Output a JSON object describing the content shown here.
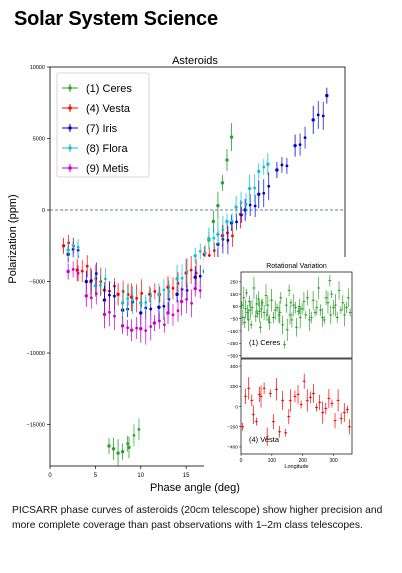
{
  "slide": {
    "title": "Solar System Science",
    "caption": "PICSARR phase curves of asteroids (20cm telescope) show higher precision and more complete coverage than past observations with 1–2m class telescopes."
  },
  "chart_data": [
    {
      "type": "scatter",
      "title": "Asteroids",
      "xlabel": "Phase angle (deg)",
      "ylabel": "Polarization (ppm)",
      "xlim": [
        0,
        32.5
      ],
      "ylim": [
        -17900,
        10000
      ],
      "xticks": [
        0,
        5,
        10,
        15,
        20,
        25,
        30
      ],
      "yticks": [
        -15000,
        -10000,
        -5000,
        0,
        5000,
        10000
      ],
      "zero_line": true,
      "legend_position": "top-left",
      "series": [
        {
          "name": "(1) Ceres",
          "color": "#2ca02c",
          "x": [
            6.5,
            7.0,
            7.5,
            8.0,
            8.7,
            17.0,
            17.5,
            18.0,
            18.5,
            19.0,
            19.5,
            20.0
          ],
          "y": [
            -16500,
            -16700,
            -17000,
            -16900,
            -16600,
            -4300,
            -2100,
            -800,
            300,
            1900,
            3500,
            5100
          ]
        },
        {
          "name": "(4) Vesta",
          "color": "#ff0000",
          "x": [
            1.5,
            3.0,
            4.5,
            6.0,
            7.5,
            9.0,
            11.0,
            13.0,
            15.0,
            17.0,
            19.0,
            21.0
          ],
          "y": [
            -2500,
            -4200,
            -5000,
            -5600,
            -5900,
            -6100,
            -5900,
            -5400,
            -4400,
            -3100,
            -1800,
            -300
          ]
        },
        {
          "name": "(7) Iris",
          "color": "#0000cc",
          "x": [
            2.0,
            4.0,
            6.0,
            8.0,
            10.0,
            12.0,
            14.0,
            16.0,
            18.5,
            20.0,
            21.5,
            23.0,
            25.0,
            27.0,
            29.0,
            30.5
          ],
          "y": [
            -3100,
            -5000,
            -6300,
            -7000,
            -7200,
            -6800,
            -5900,
            -4700,
            -2400,
            -900,
            0,
            1100,
            2800,
            4500,
            6300,
            8000
          ]
        },
        {
          "name": "(8) Flora",
          "color": "#17becf",
          "x": [
            2.0,
            5.0,
            8.0,
            10.0,
            12.0,
            14.0,
            16.0,
            17.5,
            18.5,
            19.5,
            20.5,
            22.0,
            23.0,
            24.0
          ],
          "y": [
            -2800,
            -5300,
            -6500,
            -6500,
            -5900,
            -4800,
            -3200,
            -2000,
            -1700,
            -800,
            200,
            1500,
            2700,
            3200
          ]
        },
        {
          "name": "(9) Metis",
          "color": "#cc00cc",
          "x": [
            2.0,
            4.0,
            6.0,
            8.0,
            9.0,
            10.0,
            11.5,
            13.0,
            14.5,
            16.0,
            17.5
          ],
          "y": [
            -4300,
            -6000,
            -7300,
            -8100,
            -8400,
            -8300,
            -7900,
            -7200,
            -6400,
            -5500,
            -4600
          ]
        }
      ]
    },
    {
      "type": "scatter",
      "title": "Rotational Variation",
      "subplots": [
        {
          "label": "(1) Ceres",
          "color": "#2ca02c",
          "ylim": [
            -370,
            330
          ],
          "yticks": [
            -350,
            -250,
            -150,
            -50,
            50,
            150,
            250
          ],
          "x": [
            3,
            6,
            9,
            12,
            15,
            18,
            21,
            24,
            27,
            30,
            33,
            36,
            42,
            48,
            51,
            54,
            57,
            60,
            63,
            66,
            69,
            75,
            81,
            84,
            87,
            90,
            93,
            99,
            105,
            111,
            117,
            123,
            126,
            129,
            135,
            141,
            147,
            150,
            156,
            159,
            162,
            165,
            171,
            177,
            180,
            186,
            189,
            192,
            198,
            204,
            210,
            216,
            222,
            228,
            234,
            240,
            246,
            252,
            258,
            264,
            270,
            276,
            282,
            288,
            291,
            294,
            300,
            306,
            312,
            318,
            324,
            330,
            336,
            342,
            348,
            354
          ],
          "y": [
            60,
            -40,
            120,
            -80,
            30,
            160,
            0,
            -60,
            90,
            20,
            -100,
            40,
            200,
            -30,
            70,
            -10,
            110,
            10,
            -120,
            30,
            80,
            0,
            140,
            -20,
            60,
            -60,
            -80,
            100,
            -40,
            20,
            40,
            -20,
            0,
            120,
            -100,
            -260,
            60,
            -140,
            180,
            -20,
            80,
            -60,
            60,
            40,
            -120,
            10,
            50,
            -40,
            30,
            90,
            -20,
            120,
            -60,
            -40,
            100,
            0,
            40,
            200,
            20,
            -40,
            -60,
            120,
            80,
            260,
            -20,
            150,
            40,
            60,
            -40,
            180,
            20,
            80,
            -20,
            40,
            120,
            0
          ]
        },
        {
          "label": "(4) Vesta",
          "color": "#ff0000",
          "ylim": [
            -470,
            470
          ],
          "yticks": [
            -400,
            -200,
            0,
            200,
            400
          ],
          "xticks": [
            0,
            100,
            200,
            300
          ],
          "xlabel": "Longitude",
          "x": [
            5,
            15,
            25,
            35,
            40,
            50,
            60,
            65,
            75,
            85,
            95,
            105,
            115,
            125,
            135,
            145,
            155,
            160,
            175,
            185,
            195,
            205,
            215,
            225,
            235,
            245,
            255,
            265,
            275,
            285,
            295,
            305,
            315,
            325,
            335,
            345,
            352
          ],
          "y": [
            -200,
            100,
            180,
            60,
            -80,
            -150,
            120,
            100,
            180,
            -300,
            130,
            -150,
            170,
            -250,
            60,
            -260,
            -100,
            60,
            100,
            120,
            20,
            250,
            60,
            90,
            130,
            -10,
            40,
            -60,
            -20,
            80,
            30,
            -140,
            60,
            -120,
            -60,
            -30,
            -200
          ]
        }
      ],
      "xlim": [
        0,
        360
      ]
    }
  ]
}
